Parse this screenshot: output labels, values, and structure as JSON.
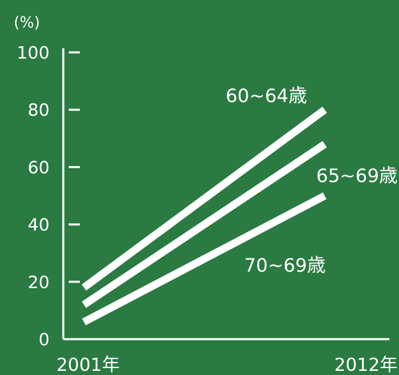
{
  "chart_data": {
    "type": "line",
    "ylabel": "(%)",
    "ylim": [
      0,
      100
    ],
    "y_ticks": [
      "0",
      "20",
      "40",
      "60",
      "80",
      "100"
    ],
    "x": [
      "2001年",
      "2012年"
    ],
    "series": [
      {
        "name": "60~64歳",
        "values": [
          18,
          80
        ]
      },
      {
        "name": "65~69歳",
        "values": [
          12,
          68
        ]
      },
      {
        "name": "70~69歳",
        "values": [
          6,
          50
        ]
      }
    ],
    "grid": false,
    "legend": "inline labels near line ends"
  },
  "colors": {
    "background": "#2a7a42",
    "ink": "#ffffff"
  }
}
